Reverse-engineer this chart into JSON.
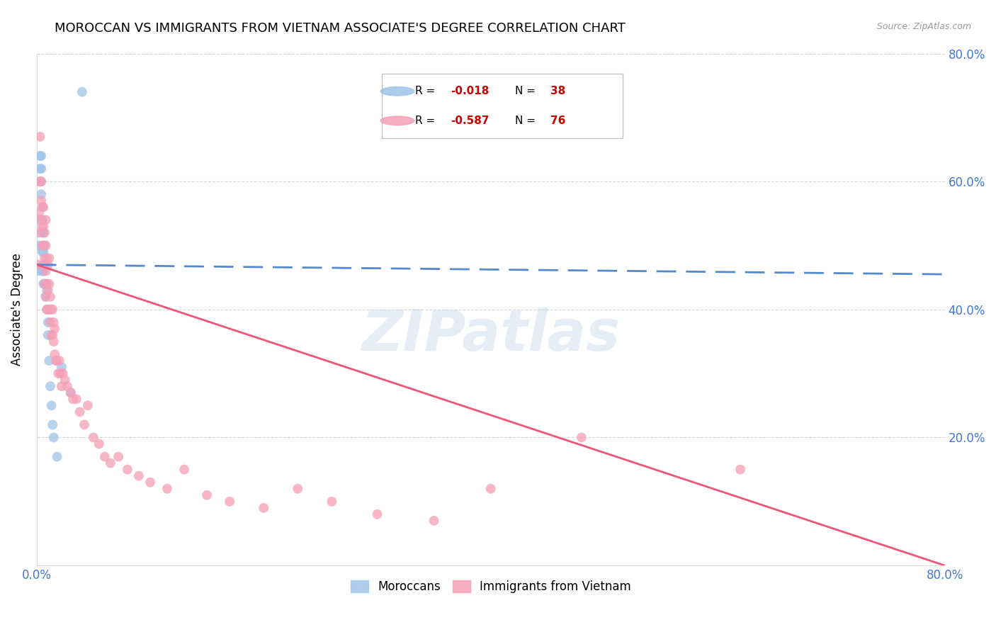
{
  "title": "MOROCCAN VS IMMIGRANTS FROM VIETNAM ASSOCIATE'S DEGREE CORRELATION CHART",
  "source": "Source: ZipAtlas.com",
  "ylabel": "Associate's Degree",
  "watermark": "ZIPatlas",
  "blue_scatter_x": [
    0.001,
    0.002,
    0.002,
    0.003,
    0.003,
    0.003,
    0.004,
    0.004,
    0.004,
    0.004,
    0.005,
    0.005,
    0.005,
    0.005,
    0.005,
    0.006,
    0.006,
    0.006,
    0.006,
    0.007,
    0.007,
    0.007,
    0.008,
    0.008,
    0.008,
    0.009,
    0.009,
    0.01,
    0.01,
    0.011,
    0.012,
    0.013,
    0.014,
    0.015,
    0.018,
    0.022,
    0.03,
    0.04
  ],
  "blue_scatter_y": [
    0.46,
    0.5,
    0.54,
    0.6,
    0.62,
    0.64,
    0.58,
    0.6,
    0.62,
    0.64,
    0.46,
    0.49,
    0.52,
    0.54,
    0.56,
    0.44,
    0.46,
    0.49,
    0.52,
    0.44,
    0.47,
    0.5,
    0.42,
    0.44,
    0.47,
    0.4,
    0.43,
    0.36,
    0.38,
    0.32,
    0.28,
    0.25,
    0.22,
    0.2,
    0.17,
    0.31,
    0.27,
    0.74
  ],
  "pink_scatter_x": [
    0.001,
    0.002,
    0.002,
    0.003,
    0.003,
    0.004,
    0.004,
    0.004,
    0.005,
    0.005,
    0.005,
    0.006,
    0.006,
    0.006,
    0.006,
    0.007,
    0.007,
    0.007,
    0.008,
    0.008,
    0.008,
    0.008,
    0.009,
    0.009,
    0.009,
    0.01,
    0.01,
    0.01,
    0.011,
    0.011,
    0.011,
    0.012,
    0.012,
    0.013,
    0.013,
    0.014,
    0.014,
    0.015,
    0.015,
    0.016,
    0.016,
    0.017,
    0.018,
    0.019,
    0.02,
    0.021,
    0.022,
    0.023,
    0.025,
    0.027,
    0.03,
    0.032,
    0.035,
    0.038,
    0.042,
    0.045,
    0.05,
    0.055,
    0.06,
    0.065,
    0.072,
    0.08,
    0.09,
    0.1,
    0.115,
    0.13,
    0.15,
    0.17,
    0.2,
    0.23,
    0.26,
    0.3,
    0.35,
    0.4,
    0.48,
    0.62
  ],
  "pink_scatter_y": [
    0.47,
    0.52,
    0.55,
    0.6,
    0.67,
    0.54,
    0.57,
    0.6,
    0.5,
    0.53,
    0.56,
    0.47,
    0.5,
    0.53,
    0.56,
    0.44,
    0.48,
    0.52,
    0.42,
    0.46,
    0.5,
    0.54,
    0.4,
    0.44,
    0.48,
    0.4,
    0.43,
    0.47,
    0.4,
    0.44,
    0.48,
    0.38,
    0.42,
    0.36,
    0.4,
    0.36,
    0.4,
    0.35,
    0.38,
    0.33,
    0.37,
    0.32,
    0.32,
    0.3,
    0.32,
    0.3,
    0.28,
    0.3,
    0.29,
    0.28,
    0.27,
    0.26,
    0.26,
    0.24,
    0.22,
    0.25,
    0.2,
    0.19,
    0.17,
    0.16,
    0.17,
    0.15,
    0.14,
    0.13,
    0.12,
    0.15,
    0.11,
    0.1,
    0.09,
    0.12,
    0.1,
    0.08,
    0.07,
    0.12,
    0.2,
    0.15
  ],
  "blue_line_x": [
    0.0,
    0.8
  ],
  "blue_line_y": [
    0.47,
    0.455
  ],
  "pink_line_x": [
    0.0,
    0.8
  ],
  "pink_line_y": [
    0.47,
    0.0
  ],
  "xlim": [
    0.0,
    0.8
  ],
  "ylim": [
    0.0,
    0.8
  ],
  "right_yticks": [
    0.0,
    0.2,
    0.4,
    0.6,
    0.8
  ],
  "right_ytick_labels": [
    "",
    "20.0%",
    "40.0%",
    "60.0%",
    "80.0%"
  ],
  "xtick_positions": [
    0.0,
    0.16,
    0.32,
    0.48,
    0.64,
    0.8
  ],
  "xtick_labels": [
    "0.0%",
    "",
    "",
    "",
    "",
    "80.0%"
  ],
  "grid_color": "#cccccc",
  "scatter_size": 100,
  "blue_color": "#a0c4e8",
  "pink_color": "#f4a0b8",
  "blue_line_color": "#5588cc",
  "pink_line_color": "#ee5577",
  "axis_label_color": "#4477cc",
  "background_color": "#ffffff",
  "title_fontsize": 13,
  "axis_fontsize": 12,
  "legend_blue_r": "-0.018",
  "legend_blue_n": "38",
  "legend_pink_r": "-0.587",
  "legend_pink_n": "76",
  "legend_text_color": "#000000",
  "legend_value_color": "#cc0000"
}
